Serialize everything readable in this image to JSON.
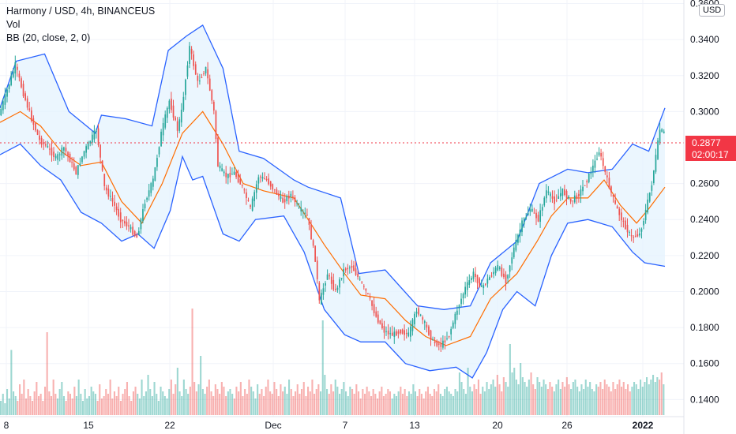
{
  "header": {
    "title": "Harmony / USD, 4h, BINANCEUS",
    "indicator_vol": "Vol",
    "indicator_bb": "BB (20, close, 2, 0)",
    "currency": "USD"
  },
  "last_price": {
    "value": "0.2877",
    "countdown": "02:00:17"
  },
  "colors": {
    "up": "#26a69a",
    "down": "#ef5350",
    "bb_band": "#2962ff",
    "bb_basis": "#ff6d00",
    "bb_fill": "#e3f2fd",
    "price_line": "#f23645"
  },
  "chart_data": {
    "type": "candlestick",
    "x_ticks": [
      "8",
      "15",
      "22",
      "Dec",
      "7",
      "13",
      "20",
      "26",
      "2022"
    ],
    "y_ticks": [
      "0.3600",
      "0.3400",
      "0.3200",
      "0.3000",
      "0.2600",
      "0.2400",
      "0.2200",
      "0.2000",
      "0.1800",
      "0.1600",
      "0.1400"
    ],
    "ylim": [
      0.134,
      0.362
    ],
    "series": [
      {
        "name": "BB upper",
        "points": [
          [
            0,
            0.302
          ],
          [
            8,
            0.328
          ],
          [
            22,
            0.332
          ],
          [
            34,
            0.3
          ],
          [
            47,
            0.288
          ],
          [
            50,
            0.298
          ],
          [
            62,
            0.296
          ],
          [
            75,
            0.292
          ],
          [
            83,
            0.334
          ],
          [
            92,
            0.342
          ],
          [
            100,
            0.348
          ],
          [
            110,
            0.324
          ],
          [
            118,
            0.278
          ],
          [
            130,
            0.274
          ],
          [
            145,
            0.262
          ],
          [
            152,
            0.258
          ],
          [
            168,
            0.252
          ],
          [
            177,
            0.21
          ],
          [
            190,
            0.212
          ],
          [
            206,
            0.192
          ],
          [
            219,
            0.19
          ],
          [
            232,
            0.192
          ],
          [
            242,
            0.216
          ],
          [
            255,
            0.228
          ],
          [
            266,
            0.26
          ],
          [
            280,
            0.268
          ],
          [
            290,
            0.266
          ],
          [
            302,
            0.268
          ],
          [
            312,
            0.282
          ],
          [
            320,
            0.278
          ],
          [
            328,
            0.302
          ]
        ]
      },
      {
        "name": "BB basis",
        "points": [
          [
            0,
            0.294
          ],
          [
            10,
            0.3
          ],
          [
            20,
            0.292
          ],
          [
            30,
            0.278
          ],
          [
            40,
            0.27
          ],
          [
            50,
            0.272
          ],
          [
            60,
            0.25
          ],
          [
            70,
            0.238
          ],
          [
            80,
            0.26
          ],
          [
            90,
            0.288
          ],
          [
            100,
            0.3
          ],
          [
            110,
            0.282
          ],
          [
            120,
            0.26
          ],
          [
            130,
            0.256
          ],
          [
            145,
            0.252
          ],
          [
            152,
            0.24
          ],
          [
            160,
            0.226
          ],
          [
            170,
            0.21
          ],
          [
            178,
            0.198
          ],
          [
            190,
            0.196
          ],
          [
            200,
            0.184
          ],
          [
            210,
            0.175
          ],
          [
            220,
            0.17
          ],
          [
            232,
            0.175
          ],
          [
            242,
            0.196
          ],
          [
            255,
            0.21
          ],
          [
            265,
            0.228
          ],
          [
            272,
            0.242
          ],
          [
            280,
            0.252
          ],
          [
            290,
            0.252
          ],
          [
            298,
            0.262
          ],
          [
            306,
            0.248
          ],
          [
            314,
            0.238
          ],
          [
            320,
            0.246
          ],
          [
            328,
            0.258
          ]
        ]
      },
      {
        "name": "BB lower",
        "points": [
          [
            0,
            0.276
          ],
          [
            10,
            0.282
          ],
          [
            20,
            0.27
          ],
          [
            30,
            0.262
          ],
          [
            40,
            0.244
          ],
          [
            50,
            0.238
          ],
          [
            60,
            0.228
          ],
          [
            68,
            0.232
          ],
          [
            76,
            0.224
          ],
          [
            84,
            0.245
          ],
          [
            90,
            0.275
          ],
          [
            95,
            0.262
          ],
          [
            100,
            0.264
          ],
          [
            110,
            0.232
          ],
          [
            118,
            0.228
          ],
          [
            126,
            0.24
          ],
          [
            140,
            0.242
          ],
          [
            150,
            0.222
          ],
          [
            160,
            0.19
          ],
          [
            170,
            0.176
          ],
          [
            178,
            0.172
          ],
          [
            190,
            0.172
          ],
          [
            200,
            0.16
          ],
          [
            212,
            0.156
          ],
          [
            225,
            0.158
          ],
          [
            233,
            0.152
          ],
          [
            240,
            0.166
          ],
          [
            248,
            0.19
          ],
          [
            255,
            0.2
          ],
          [
            264,
            0.192
          ],
          [
            272,
            0.22
          ],
          [
            280,
            0.238
          ],
          [
            290,
            0.24
          ],
          [
            302,
            0.236
          ],
          [
            312,
            0.222
          ],
          [
            318,
            0.216
          ],
          [
            328,
            0.214
          ]
        ]
      },
      {
        "name": "Price",
        "points": [
          [
            0,
            0.298
          ],
          [
            4,
            0.312
          ],
          [
            8,
            0.326
          ],
          [
            12,
            0.31
          ],
          [
            16,
            0.296
          ],
          [
            20,
            0.284
          ],
          [
            24,
            0.28
          ],
          [
            28,
            0.274
          ],
          [
            32,
            0.28
          ],
          [
            38,
            0.266
          ],
          [
            42,
            0.278
          ],
          [
            48,
            0.29
          ],
          [
            52,
            0.258
          ],
          [
            56,
            0.25
          ],
          [
            60,
            0.24
          ],
          [
            64,
            0.236
          ],
          [
            68,
            0.23
          ],
          [
            72,
            0.25
          ],
          [
            76,
            0.262
          ],
          [
            80,
            0.288
          ],
          [
            84,
            0.306
          ],
          [
            88,
            0.29
          ],
          [
            90,
            0.3
          ],
          [
            94,
            0.336
          ],
          [
            98,
            0.316
          ],
          [
            102,
            0.324
          ],
          [
            106,
            0.3
          ],
          [
            108,
            0.27
          ],
          [
            112,
            0.264
          ],
          [
            116,
            0.266
          ],
          [
            120,
            0.258
          ],
          [
            124,
            0.246
          ],
          [
            128,
            0.264
          ],
          [
            132,
            0.262
          ],
          [
            136,
            0.256
          ],
          [
            140,
            0.25
          ],
          [
            144,
            0.254
          ],
          [
            148,
            0.246
          ],
          [
            152,
            0.242
          ],
          [
            156,
            0.218
          ],
          [
            158,
            0.194
          ],
          [
            162,
            0.21
          ],
          [
            166,
            0.2
          ],
          [
            170,
            0.212
          ],
          [
            174,
            0.214
          ],
          [
            178,
            0.206
          ],
          [
            182,
            0.198
          ],
          [
            186,
            0.186
          ],
          [
            190,
            0.178
          ],
          [
            194,
            0.176
          ],
          [
            198,
            0.178
          ],
          [
            202,
            0.176
          ],
          [
            206,
            0.19
          ],
          [
            210,
            0.182
          ],
          [
            214,
            0.172
          ],
          [
            218,
            0.17
          ],
          [
            222,
            0.176
          ],
          [
            226,
            0.19
          ],
          [
            230,
            0.202
          ],
          [
            234,
            0.21
          ],
          [
            238,
            0.202
          ],
          [
            242,
            0.208
          ],
          [
            246,
            0.214
          ],
          [
            250,
            0.206
          ],
          [
            254,
            0.224
          ],
          [
            258,
            0.238
          ],
          [
            262,
            0.246
          ],
          [
            266,
            0.24
          ],
          [
            270,
            0.256
          ],
          [
            274,
            0.25
          ],
          [
            278,
            0.256
          ],
          [
            282,
            0.25
          ],
          [
            286,
            0.254
          ],
          [
            290,
            0.262
          ],
          [
            294,
            0.272
          ],
          [
            296,
            0.278
          ],
          [
            300,
            0.262
          ],
          [
            304,
            0.248
          ],
          [
            308,
            0.238
          ],
          [
            312,
            0.23
          ],
          [
            316,
            0.232
          ],
          [
            318,
            0.24
          ],
          [
            322,
            0.26
          ],
          [
            326,
            0.29
          ],
          [
            328,
            0.288
          ]
        ]
      }
    ],
    "volume": [
      0.12,
      0.18,
      0.1,
      0.22,
      0.14,
      0.55,
      0.2,
      0.16,
      0.12,
      0.26,
      0.18,
      0.3,
      0.14,
      0.22,
      0.16,
      0.12,
      0.2,
      0.28,
      0.16,
      0.18,
      0.12,
      0.24,
      0.7,
      0.2,
      0.16,
      0.3,
      0.18,
      0.14,
      0.22,
      0.28,
      0.16,
      0.12,
      0.2,
      0.18,
      0.14,
      0.24,
      0.16,
      0.3,
      0.18,
      0.12,
      0.22,
      0.14,
      0.16,
      0.24,
      0.2,
      0.18,
      0.12,
      0.26,
      0.14,
      0.16,
      0.22,
      0.18,
      0.3,
      0.14,
      0.2,
      0.16,
      0.24,
      0.12,
      0.18,
      0.22,
      0.28,
      0.16,
      0.12,
      0.2,
      0.24,
      0.18,
      0.14,
      0.3,
      0.16,
      0.2,
      0.34,
      0.22,
      0.16,
      0.28,
      0.18,
      0.12,
      0.24,
      0.2,
      0.16,
      0.14,
      0.22,
      0.3,
      0.18,
      0.26,
      0.4,
      0.2,
      0.16,
      0.3,
      0.22,
      0.18,
      0.24,
      0.9,
      0.28,
      0.2,
      0.26,
      0.5,
      0.22,
      0.18,
      0.24,
      0.3,
      0.2,
      0.16,
      0.26,
      0.22,
      0.18,
      0.28,
      0.24,
      0.16,
      0.2,
      0.22,
      0.18,
      0.14,
      0.24,
      0.2,
      0.28,
      0.16,
      0.22,
      0.18,
      0.3,
      0.24,
      0.2,
      0.14,
      0.26,
      0.18,
      0.22,
      0.16,
      0.24,
      0.3,
      0.2,
      0.18,
      0.28,
      0.22,
      0.16,
      0.26,
      0.2,
      0.24,
      0.18,
      0.3,
      0.22,
      0.16,
      0.2,
      0.26,
      0.18,
      0.22,
      0.28,
      0.16,
      0.24,
      0.2,
      0.3,
      0.18,
      0.22,
      0.26,
      0.2,
      0.8,
      0.34,
      0.22,
      0.18,
      0.26,
      0.2,
      0.3,
      0.24,
      0.18,
      0.22,
      0.28,
      0.2,
      0.16,
      0.24,
      0.22,
      0.18,
      0.26,
      0.2,
      0.14,
      0.22,
      0.18,
      0.24,
      0.2,
      0.16,
      0.22,
      0.18,
      0.14,
      0.2,
      0.24,
      0.16,
      0.18,
      0.22,
      0.2,
      0.14,
      0.18,
      0.16,
      0.2,
      0.24,
      0.18,
      0.22,
      0.16,
      0.2,
      0.18,
      0.26,
      0.2,
      0.16,
      0.22,
      0.18,
      0.14,
      0.2,
      0.24,
      0.18,
      0.16,
      0.22,
      0.2,
      0.26,
      0.18,
      0.16,
      0.22,
      0.24,
      0.2,
      0.18,
      0.16,
      0.22,
      0.2,
      0.36,
      0.28,
      0.22,
      0.18,
      0.4,
      0.24,
      0.2,
      0.26,
      0.22,
      0.3,
      0.18,
      0.24,
      0.2,
      0.28,
      0.22,
      0.26,
      0.3,
      0.24,
      0.34,
      0.26,
      0.2,
      0.32,
      0.28,
      0.24,
      0.6,
      0.36,
      0.4,
      0.3,
      0.26,
      0.44,
      0.32,
      0.28,
      0.24,
      0.3,
      0.36,
      0.26,
      0.22,
      0.32,
      0.28,
      0.24,
      0.3,
      0.26,
      0.22,
      0.28,
      0.24,
      0.2,
      0.26,
      0.3,
      0.22,
      0.28,
      0.24,
      0.32,
      0.26,
      0.22,
      0.28,
      0.3,
      0.24,
      0.2,
      0.26,
      0.22,
      0.3,
      0.24,
      0.28,
      0.22,
      0.2,
      0.26,
      0.24,
      0.28,
      0.22,
      0.3,
      0.26,
      0.24,
      0.2,
      0.28,
      0.22,
      0.26,
      0.3,
      0.24,
      0.28,
      0.22,
      0.26,
      0.2,
      0.24,
      0.28,
      0.26,
      0.22,
      0.3,
      0.24,
      0.28,
      0.32,
      0.26,
      0.3,
      0.34,
      0.28,
      0.32,
      0.3,
      0.36,
      0.26
    ]
  }
}
